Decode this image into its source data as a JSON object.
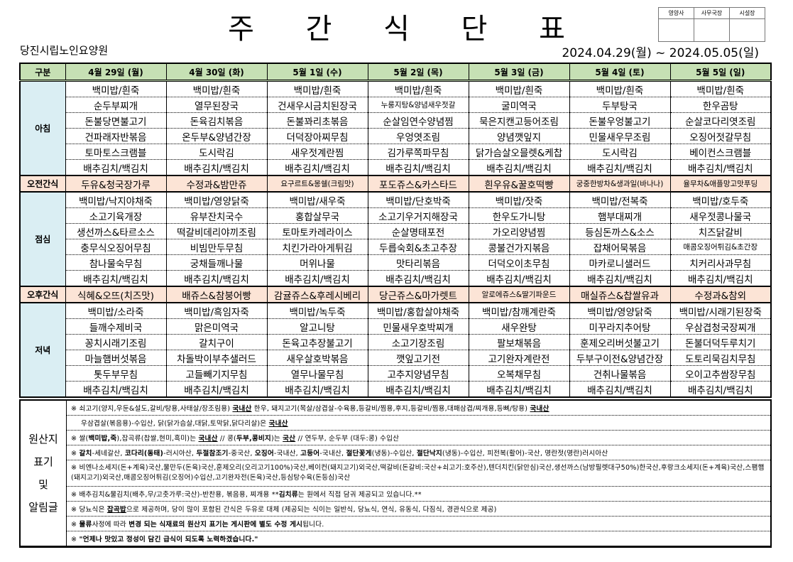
{
  "header": {
    "title": "주 간 식 단 표",
    "organization": "당진시립노인요양원",
    "period": "2024.04.29(월) ~ 2024.05.05(일)",
    "approvals": [
      "영양사",
      "사무국장",
      "시설장"
    ]
  },
  "colors": {
    "header_bg": "#c6e0b4",
    "label_bg": "#daeef3",
    "snack_bg": "#fce4d6"
  },
  "table": {
    "corner": "구분",
    "days": [
      "4월 29일 (월)",
      "4월 30일 (화)",
      "5월 1일 (수)",
      "5월 2일 (목)",
      "5월 3일 (금)",
      "5월 4일 (토)",
      "5월 5일 (일)"
    ],
    "sections": [
      {
        "label": "아침",
        "type": "meal",
        "rows": [
          [
            "백미밥/흰죽",
            "백미밥/흰죽",
            "백미밥/흰죽",
            "백미밥/흰죽",
            "백미밥/흰죽",
            "백미밥/흰죽",
            "백미밥/흰죽"
          ],
          [
            "순두부찌개",
            "열무된장국",
            "건새우시금치된장국",
            "누룽지탕&양념새우젓갈",
            "굴미역국",
            "두부탕국",
            "한우곰탕"
          ],
          [
            "돈불당면불고기",
            "돈육김치볶음",
            "돈불꽈리초볶음",
            "순살임연수양념찜",
            "묵은지캔고등어조림",
            "돈불우엉불고기",
            "순살코다리엿조림"
          ],
          [
            "건파래자반볶음",
            "온두부&양념간장",
            "더덕장아찌무침",
            "우엉엿조림",
            "양념깻잎지",
            "민물새우무조림",
            "오징어젓갈무침"
          ],
          [
            "토마토스크램블",
            "도시락김",
            "새우젓계란찜",
            "김가루쪽파무침",
            "닭가슴살오믈렛&케찹",
            "도시락김",
            "베이컨스크램블"
          ],
          [
            "배추김치/백김치",
            "배추김치/백김치",
            "배추김치/백김치",
            "배추김치/백김치",
            "배추김치/백김치",
            "배추김치/백김치",
            "배추김치/백김치"
          ]
        ]
      },
      {
        "label": "오전간식",
        "type": "snack",
        "rows": [
          [
            "두유&청국장가루",
            "수정과&밤만쥬",
            "요구르트&몽쉘(크림맛)",
            "포도쥬스&카스타드",
            "흰우유&꿀호떡빵",
            "궁중한방차&생과일(바나나)",
            "율무차&애플망고맛푸딩"
          ]
        ]
      },
      {
        "label": "점심",
        "type": "meal",
        "rows": [
          [
            "백미밥/낙지야채죽",
            "백미밥/영양닭죽",
            "백미밥/새우죽",
            "백미밥/단호박죽",
            "백미밥/잣죽",
            "백미밥/전복죽",
            "백미밥/호두죽"
          ],
          [
            "소고기육개장",
            "유부잔치국수",
            "홍합살무국",
            "소고기우거지해장국",
            "한우도가니탕",
            "햄부대찌개",
            "새우젓콩나물국"
          ],
          [
            "생선까스&타르소스",
            "떡갈비데리야끼조림",
            "토마토카레라이스",
            "순살명태포전",
            "가오리양념찜",
            "등심돈까스&소스",
            "치즈닭갈비"
          ],
          [
            "충무식오징어무침",
            "비빔만두무침",
            "치킨가라아게튀김",
            "두릅숙회&초고추장",
            "콩불건가지볶음",
            "잡채어묵볶음",
            "매콤오징어튀김&초간장"
          ],
          [
            "참나물숙무침",
            "궁채들깨나물",
            "머위나물",
            "맛타리볶음",
            "더덕오이초무침",
            "마카로니샐러드",
            "치커리사과무침"
          ],
          [
            "배추김치/백김치",
            "배추김치/백김치",
            "배추김치/백김치",
            "배추김치/백김치",
            "배추김치/백김치",
            "배추김치/백김치",
            "배추김치/백김치"
          ]
        ]
      },
      {
        "label": "오후간식",
        "type": "snack",
        "rows": [
          [
            "식혜&오뜨(치즈맛)",
            "배쥬스&참붕어빵",
            "감귤쥬스&후레시베리",
            "당근쥬스&마가렛트",
            "알로에쥬스&딸기파운드",
            "매실쥬스&찹쌀유과",
            "수정과&참외"
          ]
        ]
      },
      {
        "label": "저녁",
        "type": "meal",
        "rows": [
          [
            "백미밥/소라죽",
            "백미밥/흑임자죽",
            "백미밥/녹두죽",
            "백미밥/홍합살야채죽",
            "백미밥/참깨계란죽",
            "백미밥/영양닭죽",
            "백미밥/시래기된장죽"
          ],
          [
            "들깨수제비국",
            "맑은미역국",
            "알고니탕",
            "민물새우호박찌개",
            "새우완탕",
            "미꾸라지추어탕",
            "우삼겹청국장찌개"
          ],
          [
            "꽁치시래기조림",
            "갈치구이",
            "돈육고추장불고기",
            "소고기장조림",
            "팔보채볶음",
            "훈제오리버섯불고기",
            "돈불더덕두루치기"
          ],
          [
            "마늘햄버섯볶음",
            "차돌박이부추샐러드",
            "새우살호박볶음",
            "깻잎고기전",
            "고기완자계란전",
            "두부구이전&양념간장",
            "도토리묵김치무침"
          ],
          [
            "톳두부무침",
            "고들빼기지무침",
            "열무나물무침",
            "고추지양념무침",
            "오복채무침",
            "건취나물볶음",
            "오이고추쌈장무침"
          ],
          [
            "배추김치/백김치",
            "배추김치/백김치",
            "배추김치/백김치",
            "배추김치/백김치",
            "배추김치/백김치",
            "배추김치/백김치",
            "배추김치/백김치"
          ]
        ]
      }
    ]
  },
  "notes": {
    "label": [
      "원산지",
      "표기",
      "및",
      "알림글"
    ],
    "items": [
      [
        {
          "t": "※ 쇠고기(양지,우둔&설도,갈비/탕용,사태살/장조림용) "
        },
        {
          "t": "국내산",
          "s": "u"
        },
        {
          "t": " 한우, 돼지고기(목살/삼겹살-수육용,등갈비/찜용,후지,등갈비/찜용,대패삼겹/찌개용,등뼈/탕용) "
        },
        {
          "t": "국내산",
          "s": "u"
        }
      ],
      [
        {
          "t": "우삼겹살(볶음용)-수입산, 닭(닭가슴살,대닭,토막닭,닭다리살)은 "
        },
        {
          "t": "국내산",
          "s": "u"
        }
      ],
      [
        {
          "t": "※ 쌀("
        },
        {
          "t": "백미밥,죽",
          "s": "b"
        },
        {
          "t": "),잡곡류(찹쌀,현미,흑미)는 "
        },
        {
          "t": "국내산",
          "s": "u"
        },
        {
          "t": "  // 콩("
        },
        {
          "t": "두부,콩비지",
          "s": "b"
        },
        {
          "t": ")는 "
        },
        {
          "t": "국산",
          "s": "u"
        },
        {
          "t": "    // 연두부, 순두부 (대두:콩) 수입산"
        }
      ],
      [
        {
          "t": "※ "
        },
        {
          "t": "갈치",
          "s": "b"
        },
        {
          "t": "-세네갈산, "
        },
        {
          "t": "코다리(동태)",
          "s": "b"
        },
        {
          "t": "-러시아산, "
        },
        {
          "t": "두절참조기",
          "s": "b"
        },
        {
          "t": "-중국산, "
        },
        {
          "t": "오징어",
          "s": "b"
        },
        {
          "t": "-국내산, "
        },
        {
          "t": "고등어",
          "s": "b"
        },
        {
          "t": "-국내산, "
        },
        {
          "t": "절단꽃게",
          "s": "b"
        },
        {
          "t": "(냉동)-수입산, "
        },
        {
          "t": "절단낙지",
          "s": "b"
        },
        {
          "t": "(냉동)-수입산, 피전복(활어)-국산, 명란젓(명란)러시아산"
        }
      ],
      [
        {
          "t": "※ 비엔나소세지(돈+계육)국산,물만두(돈육)국산,훈제오리(오리고기100%)국산,베이컨(돼지고기)외국산,떡갈비(돈갈비:국산+쇠고기:호주산),텐더치킨(닭안심)국산,생선까스(남방필렛대구50%)한국산,후랑크소세지(돈+계육)국산,스팸햄(돼지고기)외국산,매콤오징어튀김(오징어)수입산,고기완자전(돈육)국산,등심탕수육(돈등심)국산"
        }
      ],
      [
        {
          "t": "※ 배추김치&물김치(배추,무/고춧가루:국산)-반찬용, 볶음용, 찌개용  **"
        },
        {
          "t": "김치류",
          "s": "b"
        },
        {
          "t": "는 원에서 직접 담궈 제공되고 있습니다.**"
        }
      ],
      [
        {
          "t": "※ 당뇨식은 "
        },
        {
          "t": "잡곡밥",
          "s": "u"
        },
        {
          "t": "으로 제공하며, 당이 많이 포함된 간식은 두유로 대체 (제공되는 식이는 일반식, 당뇨식, 연식, 유동식, 다짐식, 경관식으로 제공)"
        }
      ],
      [
        {
          "t": "※ "
        },
        {
          "t": "물류",
          "s": "b"
        },
        {
          "t": "사정에 따라 "
        },
        {
          "t": "변경 되는 식재료의 원산지 표기는 게시판에 별도 수정 게시",
          "s": "b"
        },
        {
          "t": "됩니다."
        }
      ],
      [
        {
          "t": "※ "
        },
        {
          "t": "\"언제나 맛있고 정성이 담긴 급식이 되도록 노력하겠습니다.\"",
          "s": "b"
        }
      ]
    ]
  }
}
